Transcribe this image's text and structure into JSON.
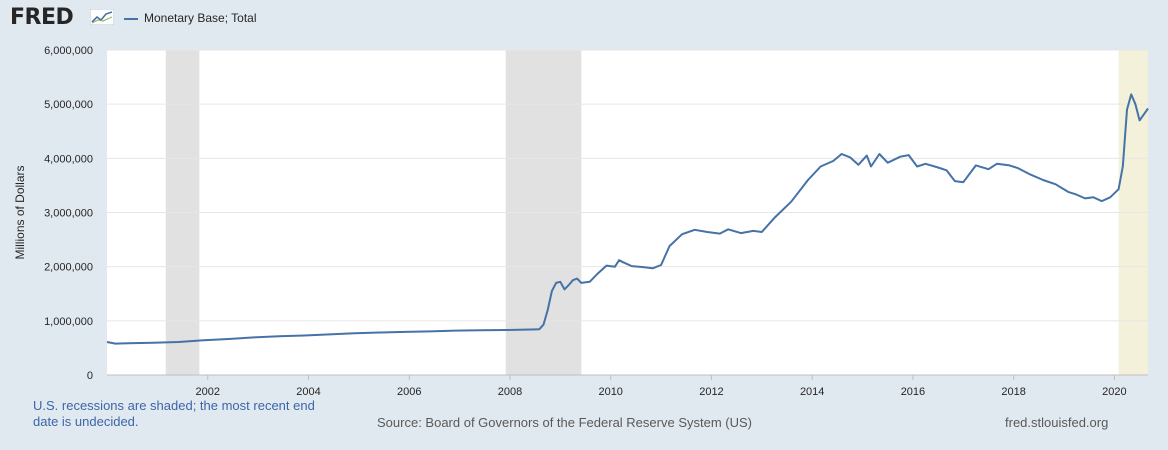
{
  "header": {
    "logo_text": "FRED",
    "logo_icon": "trend-chart-icon",
    "series_label": "Monetary Base; Total"
  },
  "colors": {
    "background": "#e1e9f0",
    "plot_background": "#ffffff",
    "line": "#4572a7",
    "recession": "#e1e1e1",
    "undecided_recession": "#f3f1d9",
    "footer_note": "#3c66a8"
  },
  "chart_data": {
    "type": "line",
    "ylabel": "Millions of Dollars",
    "xlim": [
      "2000-01",
      "2020-09"
    ],
    "ylim": [
      0,
      6000000
    ],
    "grid": true,
    "y_ticks": [
      "0",
      "1,000,000",
      "2,000,000",
      "3,000,000",
      "4,000,000",
      "5,000,000",
      "6,000,000"
    ],
    "x_ticks": [
      "2002",
      "2004",
      "2006",
      "2008",
      "2010",
      "2012",
      "2014",
      "2016",
      "2018",
      "2020"
    ],
    "recessions": [
      {
        "start": "2001-03",
        "end": "2001-11"
      },
      {
        "start": "2007-12",
        "end": "2009-06"
      },
      {
        "start": "2020-02",
        "end": "2020-09",
        "undecided": true
      }
    ],
    "series": [
      {
        "name": "Monetary Base; Total",
        "points": [
          [
            "2000-01",
            610000
          ],
          [
            "2000-03",
            580000
          ],
          [
            "2000-06",
            585000
          ],
          [
            "2000-12",
            595000
          ],
          [
            "2001-06",
            610000
          ],
          [
            "2001-12",
            640000
          ],
          [
            "2002-06",
            665000
          ],
          [
            "2002-12",
            695000
          ],
          [
            "2003-06",
            715000
          ],
          [
            "2003-12",
            730000
          ],
          [
            "2004-06",
            750000
          ],
          [
            "2004-12",
            770000
          ],
          [
            "2005-06",
            785000
          ],
          [
            "2005-12",
            795000
          ],
          [
            "2006-06",
            805000
          ],
          [
            "2006-12",
            820000
          ],
          [
            "2007-06",
            825000
          ],
          [
            "2007-12",
            830000
          ],
          [
            "2008-06",
            840000
          ],
          [
            "2008-08",
            845000
          ],
          [
            "2008-09",
            930000
          ],
          [
            "2008-10",
            1200000
          ],
          [
            "2008-11",
            1550000
          ],
          [
            "2008-12",
            1700000
          ],
          [
            "2009-01",
            1720000
          ],
          [
            "2009-02",
            1580000
          ],
          [
            "2009-03",
            1660000
          ],
          [
            "2009-04",
            1750000
          ],
          [
            "2009-05",
            1780000
          ],
          [
            "2009-06",
            1700000
          ],
          [
            "2009-08",
            1720000
          ],
          [
            "2009-10",
            1880000
          ],
          [
            "2009-12",
            2020000
          ],
          [
            "2010-02",
            2000000
          ],
          [
            "2010-03",
            2120000
          ],
          [
            "2010-04",
            2080000
          ],
          [
            "2010-06",
            2010000
          ],
          [
            "2010-09",
            1990000
          ],
          [
            "2010-11",
            1970000
          ],
          [
            "2011-01",
            2030000
          ],
          [
            "2011-03",
            2380000
          ],
          [
            "2011-06",
            2600000
          ],
          [
            "2011-09",
            2680000
          ],
          [
            "2011-12",
            2640000
          ],
          [
            "2012-03",
            2610000
          ],
          [
            "2012-05",
            2690000
          ],
          [
            "2012-08",
            2620000
          ],
          [
            "2012-11",
            2660000
          ],
          [
            "2013-01",
            2640000
          ],
          [
            "2013-04",
            2900000
          ],
          [
            "2013-08",
            3200000
          ],
          [
            "2013-12",
            3600000
          ],
          [
            "2014-03",
            3850000
          ],
          [
            "2014-06",
            3950000
          ],
          [
            "2014-08",
            4080000
          ],
          [
            "2014-10",
            4020000
          ],
          [
            "2014-12",
            3880000
          ],
          [
            "2015-02",
            4050000
          ],
          [
            "2015-03",
            3850000
          ],
          [
            "2015-05",
            4080000
          ],
          [
            "2015-07",
            3920000
          ],
          [
            "2015-10",
            4030000
          ],
          [
            "2015-12",
            4060000
          ],
          [
            "2016-02",
            3850000
          ],
          [
            "2016-04",
            3900000
          ],
          [
            "2016-07",
            3830000
          ],
          [
            "2016-09",
            3780000
          ],
          [
            "2016-11",
            3580000
          ],
          [
            "2017-01",
            3560000
          ],
          [
            "2017-04",
            3870000
          ],
          [
            "2017-07",
            3800000
          ],
          [
            "2017-09",
            3900000
          ],
          [
            "2017-12",
            3870000
          ],
          [
            "2018-02",
            3820000
          ],
          [
            "2018-05",
            3700000
          ],
          [
            "2018-08",
            3600000
          ],
          [
            "2018-11",
            3520000
          ],
          [
            "2019-02",
            3380000
          ],
          [
            "2019-04",
            3330000
          ],
          [
            "2019-06",
            3260000
          ],
          [
            "2019-08",
            3280000
          ],
          [
            "2019-10",
            3210000
          ],
          [
            "2019-12",
            3280000
          ],
          [
            "2020-02",
            3430000
          ],
          [
            "2020-03",
            3850000
          ],
          [
            "2020-04",
            4900000
          ],
          [
            "2020-05",
            5180000
          ],
          [
            "2020-06",
            5000000
          ],
          [
            "2020-07",
            4700000
          ],
          [
            "2020-09",
            4920000
          ]
        ]
      }
    ]
  },
  "footer": {
    "note": "U.S. recessions are shaded; the most recent end date is undecided.",
    "source": "Source: Board of Governors of the Federal Reserve System (US)",
    "site": "fred.stlouisfed.org"
  }
}
